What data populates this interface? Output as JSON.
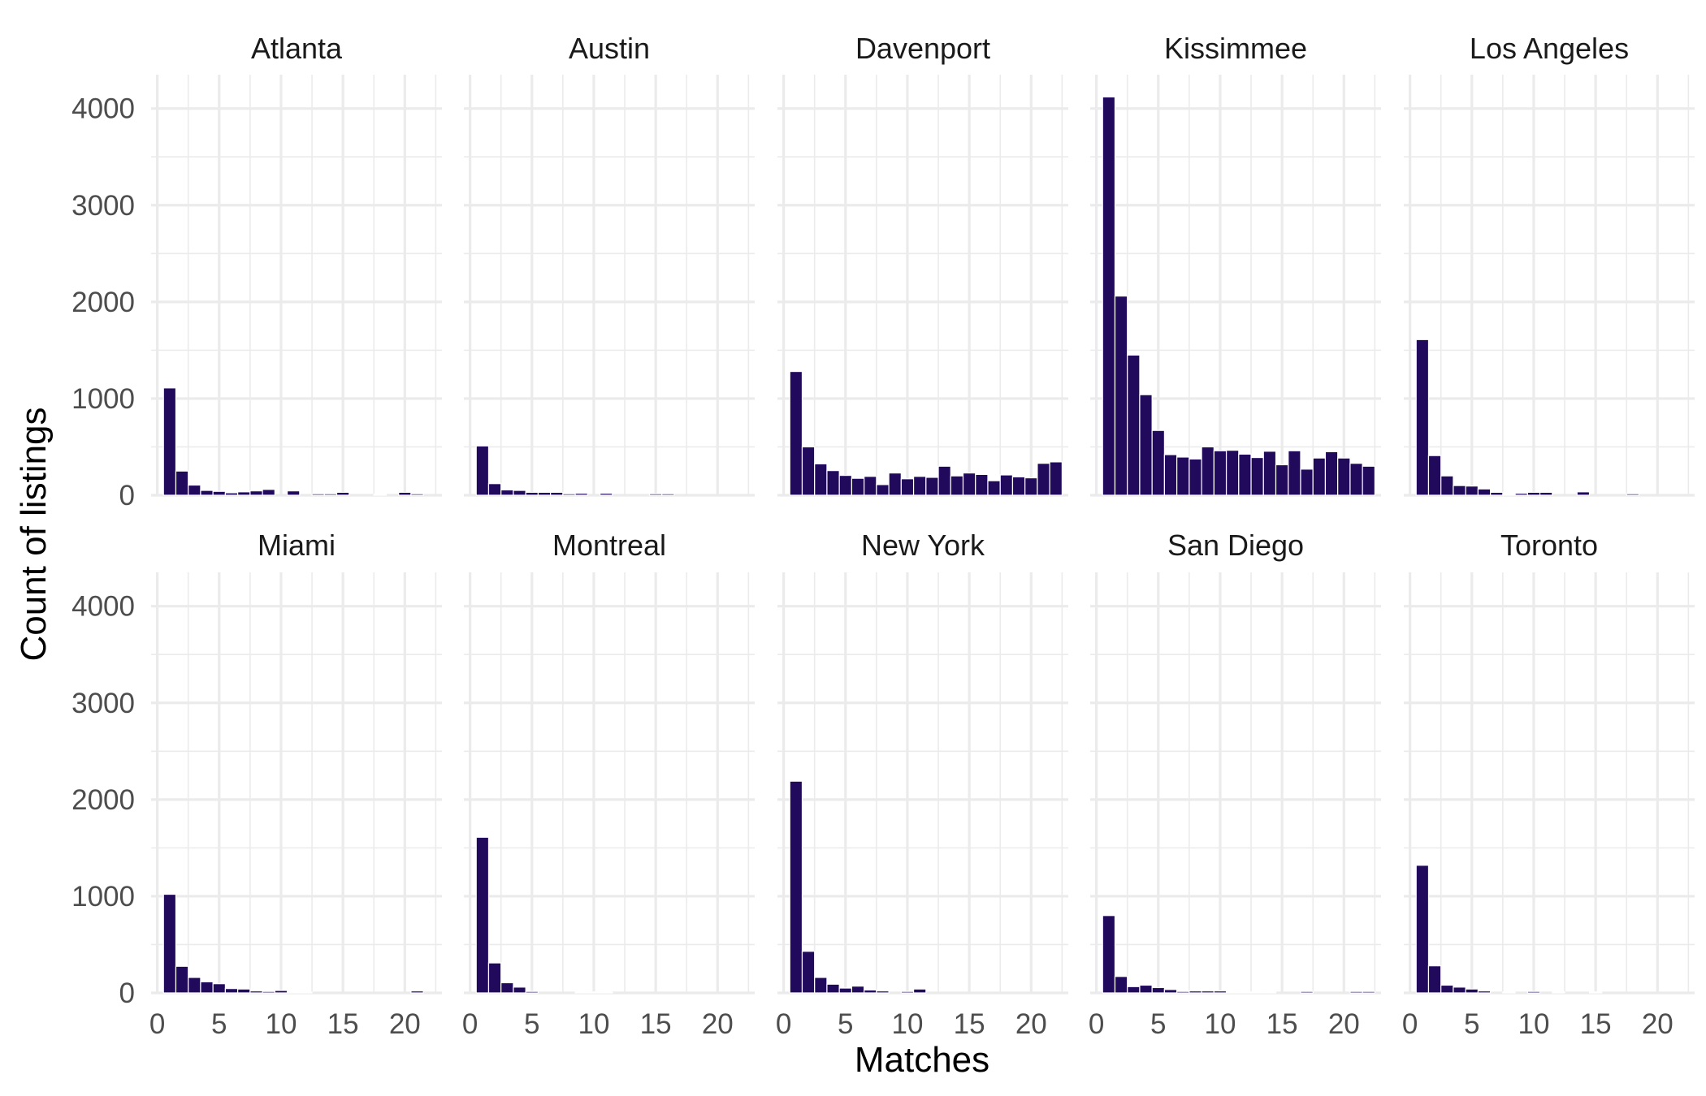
{
  "chart_data": {
    "type": "bar",
    "subtype": "faceted-histogram",
    "xlabel": "Matches",
    "ylabel": "Count of listings",
    "xlim": [
      -0.5,
      23
    ],
    "ylim": [
      0,
      4350
    ],
    "x_ticks": [
      0,
      5,
      10,
      15,
      20
    ],
    "y_ticks": [
      0,
      1000,
      2000,
      3000,
      4000
    ],
    "bin_width": 1,
    "bar_color": "#21095c",
    "facet_layout": {
      "rows": 2,
      "cols": 5
    },
    "grid": true,
    "facets": [
      {
        "name": "Atlanta",
        "x": [
          1,
          2,
          3,
          4,
          5,
          6,
          7,
          8,
          9,
          11,
          13,
          14,
          15,
          18,
          20,
          21
        ],
        "values": [
          1110,
          250,
          105,
          50,
          40,
          25,
          35,
          45,
          60,
          45,
          15,
          15,
          30,
          10,
          30,
          15
        ]
      },
      {
        "name": "Austin",
        "x": [
          1,
          2,
          3,
          4,
          5,
          6,
          7,
          8,
          9,
          11,
          15,
          16
        ],
        "values": [
          510,
          120,
          55,
          50,
          30,
          30,
          30,
          15,
          20,
          20,
          15,
          15
        ]
      },
      {
        "name": "Davenport",
        "x": [
          1,
          2,
          3,
          4,
          5,
          6,
          7,
          8,
          9,
          10,
          11,
          12,
          13,
          14,
          15,
          16,
          17,
          18,
          19,
          20,
          21,
          22
        ],
        "values": [
          1280,
          500,
          325,
          255,
          205,
          175,
          195,
          110,
          230,
          170,
          195,
          185,
          300,
          200,
          230,
          215,
          150,
          210,
          190,
          180,
          330,
          345
        ]
      },
      {
        "name": "Kissimmee",
        "x": [
          1,
          2,
          3,
          4,
          5,
          6,
          7,
          8,
          9,
          10,
          11,
          12,
          13,
          14,
          15,
          16,
          17,
          18,
          19,
          20,
          21,
          22
        ],
        "values": [
          4120,
          2060,
          1450,
          1040,
          670,
          420,
          395,
          375,
          500,
          460,
          465,
          425,
          390,
          455,
          315,
          460,
          270,
          385,
          450,
          385,
          330,
          300
        ]
      },
      {
        "name": "Los Angeles",
        "x": [
          1,
          2,
          3,
          4,
          5,
          6,
          7,
          8,
          9,
          10,
          11,
          14,
          18
        ],
        "values": [
          1610,
          410,
          200,
          100,
          95,
          65,
          30,
          10,
          20,
          30,
          30,
          35,
          15
        ]
      },
      {
        "name": "Miami",
        "x": [
          1,
          2,
          3,
          4,
          5,
          6,
          7,
          8,
          9,
          10,
          11,
          12,
          21
        ],
        "values": [
          1020,
          275,
          160,
          115,
          95,
          45,
          40,
          20,
          15,
          25,
          10,
          10,
          20
        ]
      },
      {
        "name": "Montreal",
        "x": [
          1,
          2,
          3,
          4,
          5,
          9,
          10,
          11
        ],
        "values": [
          1610,
          310,
          105,
          60,
          15,
          10,
          10,
          10
        ]
      },
      {
        "name": "New York",
        "x": [
          1,
          2,
          3,
          4,
          5,
          6,
          7,
          8,
          10,
          11
        ],
        "values": [
          2190,
          430,
          160,
          90,
          50,
          70,
          30,
          20,
          15,
          40
        ]
      },
      {
        "name": "San Diego",
        "x": [
          1,
          2,
          3,
          4,
          5,
          6,
          7,
          8,
          9,
          10,
          11,
          12,
          13,
          14,
          17,
          21,
          22
        ],
        "values": [
          800,
          170,
          65,
          80,
          55,
          35,
          15,
          20,
          20,
          20,
          10,
          10,
          10,
          10,
          15,
          15,
          15
        ]
      },
      {
        "name": "Toronto",
        "x": [
          1,
          2,
          3,
          4,
          5,
          6,
          8,
          10,
          12,
          15
        ],
        "values": [
          1320,
          280,
          80,
          60,
          40,
          20,
          10,
          15,
          10,
          10
        ]
      }
    ]
  }
}
